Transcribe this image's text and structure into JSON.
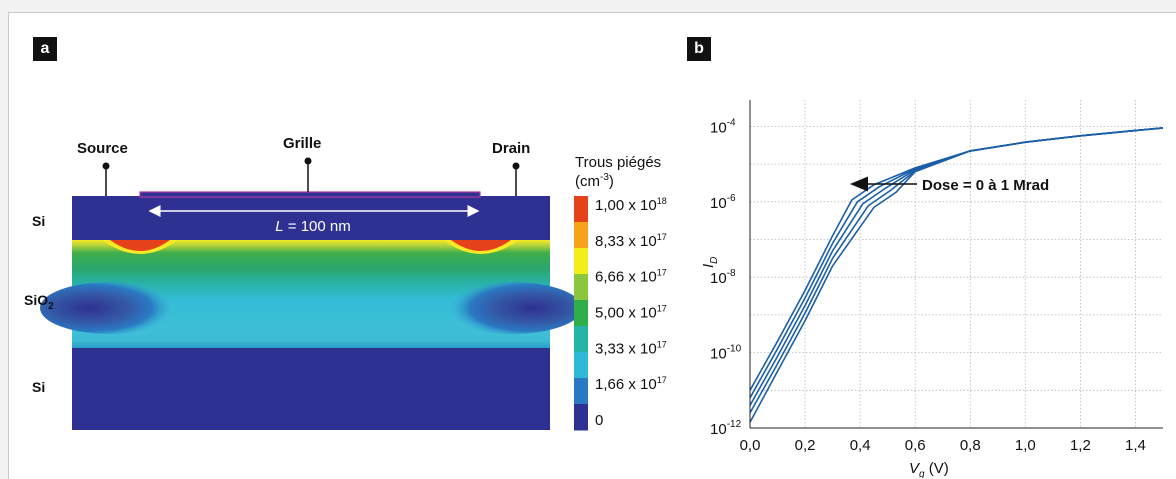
{
  "panel_a": {
    "tag": "a",
    "source_label": "Source",
    "gate_label": "Grille",
    "drain_label": "Drain",
    "length_label_italic": "L",
    "length_label_rest": " = 100 nm",
    "layer_labels": {
      "top_si": "Si",
      "sio2_main": "SiO",
      "sio2_sub": "2",
      "bottom_si": "Si"
    },
    "colorbar": {
      "title_line1": "Trous piégés",
      "title_line2_base": "(cm",
      "title_line2_sup": "-3",
      "title_line2_end": ")",
      "ticks": [
        {
          "mantissa": "1,00 x 10",
          "exp": "18"
        },
        {
          "mantissa": "8,33 x 10",
          "exp": "17"
        },
        {
          "mantissa": "6,66 x 10",
          "exp": "17"
        },
        {
          "mantissa": "5,00 x 10",
          "exp": "17"
        },
        {
          "mantissa": "3,33 x 10",
          "exp": "17"
        },
        {
          "mantissa": "1,66 x 10",
          "exp": "17"
        },
        {
          "mantissa": "0",
          "exp": ""
        }
      ],
      "colors": [
        "#e5421c",
        "#f7a21b",
        "#f5ec1c",
        "#8cc63f",
        "#2fae4a",
        "#27b3a6",
        "#2fb8d8",
        "#2a79c2",
        "#2e3191"
      ]
    }
  },
  "panel_b": {
    "tag": "b",
    "annotation": "Dose = 0 à 1 Mrad",
    "chart_data": {
      "type": "line",
      "xlabel_main": "V",
      "xlabel_sub": "g",
      "xlabel_unit": " (V)",
      "ylabel_main": "I",
      "ylabel_sub": "D",
      "xlim": [
        0,
        1.5
      ],
      "ylim_log10": [
        -12,
        -3.3
      ],
      "y_scale": "log",
      "grid": true,
      "x_ticks": [
        "0,0",
        "0,2",
        "0,4",
        "0,6",
        "0,8",
        "1,0",
        "1,2",
        "1,4"
      ],
      "y_ticks": [
        {
          "base": "10",
          "exp": "-12"
        },
        {
          "base": "10",
          "exp": "-10"
        },
        {
          "base": "10",
          "exp": "-8"
        },
        {
          "base": "10",
          "exp": "-6"
        },
        {
          "base": "10",
          "exp": "-4"
        }
      ],
      "line_color": "#1b5fa8",
      "series": [
        {
          "x": [
            0,
            0.1,
            0.2,
            0.3,
            0.37,
            0.45,
            0.6,
            0.8,
            1.0,
            1.2,
            1.5
          ],
          "log10_y": [
            -11.0,
            -9.7,
            -8.35,
            -6.9,
            -5.95,
            -5.55,
            -5.1,
            -4.65,
            -4.42,
            -4.25,
            -4.04
          ]
        },
        {
          "x": [
            0,
            0.1,
            0.2,
            0.3,
            0.39,
            0.47,
            0.6,
            0.8,
            1.0,
            1.2,
            1.5
          ],
          "log10_y": [
            -11.2,
            -9.9,
            -8.55,
            -7.1,
            -6.0,
            -5.6,
            -5.12,
            -4.65,
            -4.42,
            -4.25,
            -4.04
          ]
        },
        {
          "x": [
            0,
            0.1,
            0.2,
            0.3,
            0.41,
            0.49,
            0.6,
            0.8,
            1.0,
            1.2,
            1.5
          ],
          "log10_y": [
            -11.4,
            -10.1,
            -8.75,
            -7.3,
            -6.05,
            -5.65,
            -5.15,
            -4.65,
            -4.42,
            -4.25,
            -4.04
          ]
        },
        {
          "x": [
            0,
            0.1,
            0.2,
            0.3,
            0.43,
            0.51,
            0.6,
            0.8,
            1.0,
            1.2,
            1.5
          ],
          "log10_y": [
            -11.6,
            -10.3,
            -8.95,
            -7.5,
            -6.1,
            -5.7,
            -5.18,
            -4.65,
            -4.42,
            -4.25,
            -4.04
          ]
        },
        {
          "x": [
            0,
            0.1,
            0.2,
            0.3,
            0.45,
            0.53,
            0.6,
            0.8,
            1.0,
            1.2,
            1.5
          ],
          "log10_y": [
            -11.85,
            -10.5,
            -9.15,
            -7.7,
            -6.15,
            -5.75,
            -5.2,
            -4.65,
            -4.42,
            -4.25,
            -4.04
          ]
        }
      ]
    }
  }
}
